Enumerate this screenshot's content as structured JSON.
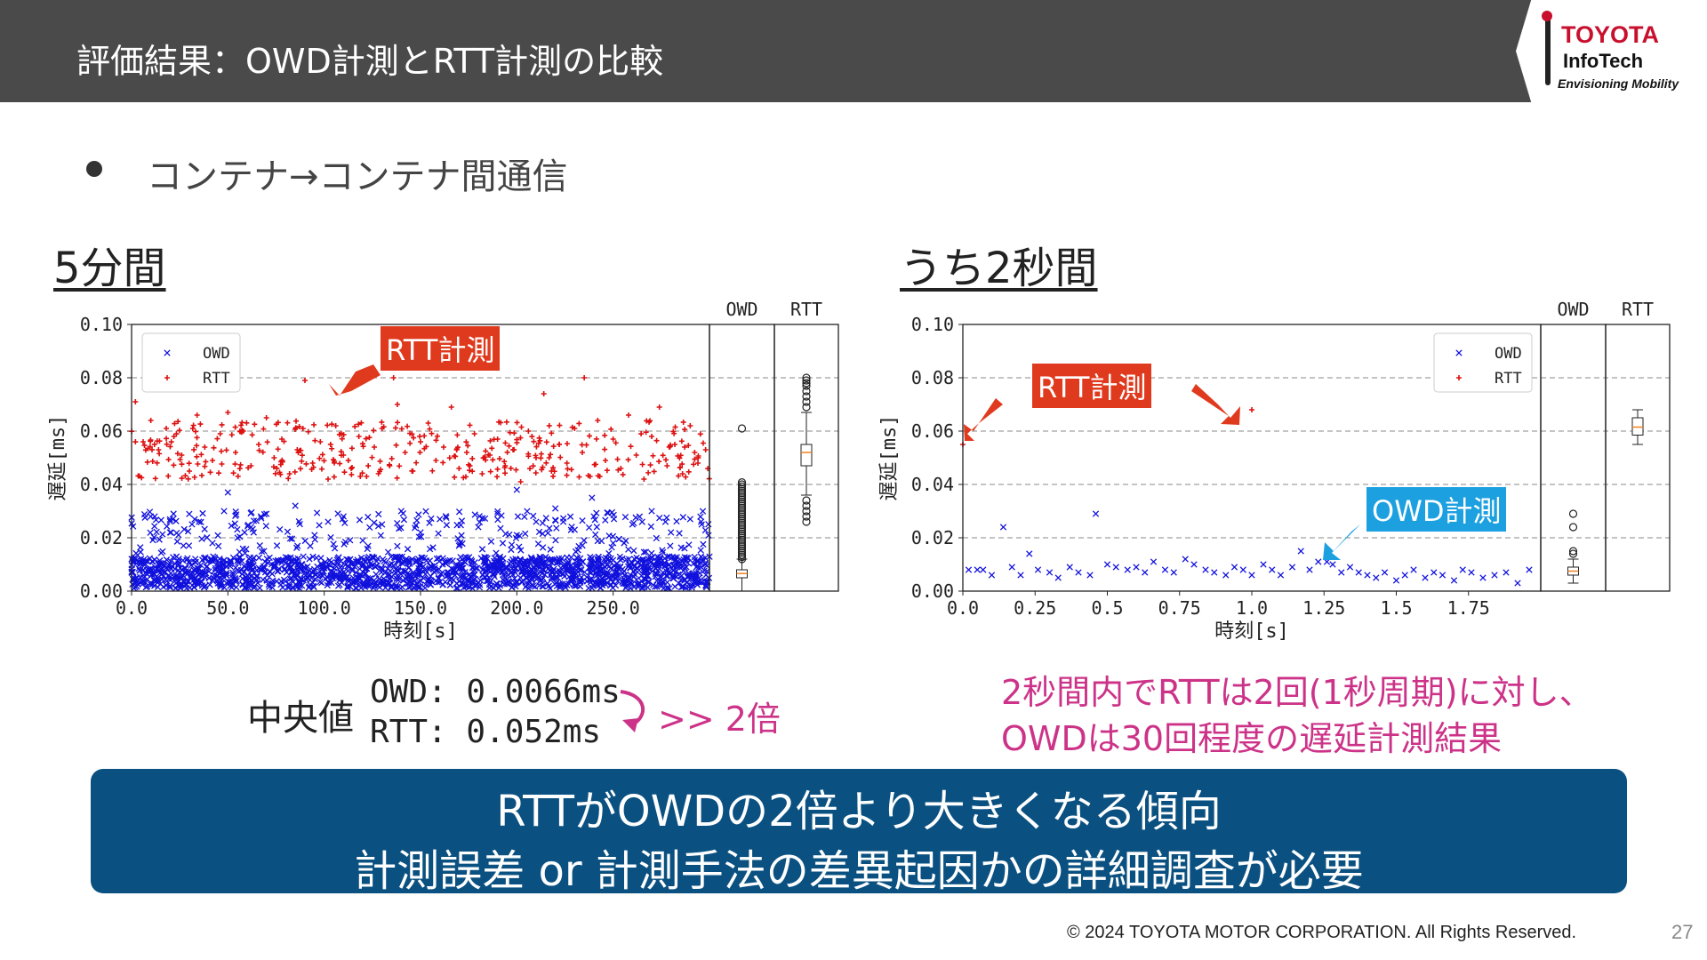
{
  "header": {
    "title": "評価結果：OWD計測とRTT計測の比較"
  },
  "logo": {
    "line1": "TOYOTA",
    "line2": "InfoTech",
    "line3": "Envisioning Mobility"
  },
  "bullet": "コンテナ→コンテナ間通信",
  "sections": {
    "left": "5分間",
    "right": "うち2秒間"
  },
  "colors": {
    "owd": "#1111dd",
    "rtt": "#dd1111",
    "accent_pink": "#cc3388",
    "banner": "#0a5080",
    "callout_red": "#e03a1e",
    "callout_blue": "#1ca0e0"
  },
  "callouts": {
    "rtt": "RTT計測",
    "owd": "OWD計測"
  },
  "chart_data": [
    {
      "type": "scatter",
      "ylabel": "遅延[ms]",
      "xlabel": "時刻[s]",
      "xlim": [
        0,
        300
      ],
      "ylim": [
        0,
        0.1
      ],
      "xticks": [
        "0.0",
        "50.0",
        "100.0",
        "150.0",
        "200.0",
        "250.0"
      ],
      "yticks": [
        "0.00",
        "0.02",
        "0.04",
        "0.06",
        "0.08",
        "0.10"
      ],
      "grid": "horizontal dashed",
      "legend": "top-left",
      "series": [
        {
          "name": "OWD",
          "marker": "x",
          "dense_band": [
            0.001,
            0.013
          ],
          "scattered": [
            [
              12,
              0.028
            ],
            [
              20,
              0.022
            ],
            [
              35,
              0.026
            ],
            [
              42,
              0.018
            ],
            [
              48,
              0.03
            ],
            [
              55,
              0.02
            ],
            [
              62,
              0.024
            ],
            [
              70,
              0.029
            ],
            [
              85,
              0.032
            ],
            [
              95,
              0.021
            ],
            [
              102,
              0.026
            ],
            [
              110,
              0.028
            ],
            [
              120,
              0.019
            ],
            [
              130,
              0.025
            ],
            [
              140,
              0.03
            ],
            [
              150,
              0.022
            ],
            [
              160,
              0.027
            ],
            [
              170,
              0.017
            ],
            [
              180,
              0.024
            ],
            [
              190,
              0.029
            ],
            [
              200,
              0.021
            ],
            [
              210,
              0.026
            ],
            [
              220,
              0.031
            ],
            [
              230,
              0.023
            ],
            [
              240,
              0.028
            ],
            [
              250,
              0.018
            ],
            [
              260,
              0.025
            ],
            [
              270,
              0.03
            ],
            [
              280,
              0.022
            ],
            [
              290,
              0.027
            ],
            [
              50,
              0.037
            ],
            [
              200,
              0.038
            ],
            [
              239,
              0.035
            ]
          ]
        },
        {
          "name": "RTT",
          "marker": "+",
          "values": [
            [
              2,
              0.071
            ],
            [
              6,
              0.056
            ],
            [
              10,
              0.064
            ],
            [
              14,
              0.053
            ],
            [
              18,
              0.061
            ],
            [
              22,
              0.058
            ],
            [
              26,
              0.051
            ],
            [
              30,
              0.045
            ],
            [
              34,
              0.066
            ],
            [
              38,
              0.054
            ],
            [
              42,
              0.049
            ],
            [
              46,
              0.059
            ],
            [
              50,
              0.067
            ],
            [
              54,
              0.052
            ],
            [
              58,
              0.06
            ],
            [
              62,
              0.047
            ],
            [
              66,
              0.055
            ],
            [
              70,
              0.065
            ],
            [
              74,
              0.05
            ],
            [
              78,
              0.057
            ],
            [
              82,
              0.044
            ],
            [
              86,
              0.053
            ],
            [
              90,
              0.079
            ],
            [
              94,
              0.048
            ],
            [
              98,
              0.056
            ],
            [
              102,
              0.042
            ],
            [
              106,
              0.062
            ],
            [
              110,
              0.051
            ],
            [
              114,
              0.046
            ],
            [
              118,
              0.058
            ],
            [
              122,
              0.043
            ],
            [
              126,
              0.054
            ],
            [
              130,
              0.061
            ],
            [
              134,
              0.047
            ],
            [
              138,
              0.07
            ],
            [
              142,
              0.052
            ],
            [
              146,
              0.045
            ],
            [
              150,
              0.056
            ],
            [
              154,
              0.063
            ],
            [
              158,
              0.049
            ],
            [
              162,
              0.054
            ],
            [
              166,
              0.069
            ],
            [
              170,
              0.046
            ],
            [
              174,
              0.052
            ],
            [
              178,
              0.059
            ],
            [
              182,
              0.044
            ],
            [
              186,
              0.051
            ],
            [
              190,
              0.057
            ],
            [
              194,
              0.047
            ],
            [
              198,
              0.053
            ],
            [
              202,
              0.041
            ],
            [
              206,
              0.06
            ],
            [
              210,
              0.05
            ],
            [
              214,
              0.074
            ],
            [
              218,
              0.045
            ],
            [
              222,
              0.055
            ],
            [
              226,
              0.048
            ],
            [
              230,
              0.061
            ],
            [
              234,
              0.052
            ],
            [
              238,
              0.043
            ],
            [
              242,
              0.064
            ],
            [
              246,
              0.049
            ],
            [
              250,
              0.057
            ],
            [
              254,
              0.046
            ],
            [
              258,
              0.066
            ],
            [
              262,
              0.051
            ],
            [
              266,
              0.042
            ],
            [
              270,
              0.058
            ],
            [
              274,
              0.069
            ],
            [
              278,
              0.047
            ],
            [
              282,
              0.055
            ],
            [
              286,
              0.044
            ],
            [
              290,
              0.062
            ],
            [
              294,
              0.048
            ],
            [
              298,
              0.053
            ],
            [
              136,
              0.08
            ],
            [
              235,
              0.08
            ]
          ]
        }
      ],
      "boxplot": {
        "labels": [
          "OWD",
          "RTT"
        ],
        "OWD": {
          "min": 0.0,
          "q1": 0.005,
          "median": 0.0066,
          "q3": 0.008,
          "max": 0.012,
          "outliers_range": [
            0.012,
            0.041
          ],
          "extra_outlier": 0.061
        },
        "RTT": {
          "min": 0.036,
          "q1": 0.047,
          "median": 0.052,
          "q3": 0.055,
          "max": 0.067,
          "outliers": [
            0.026,
            0.028,
            0.03,
            0.032,
            0.034,
            0.069,
            0.071,
            0.073,
            0.075,
            0.077,
            0.078,
            0.079,
            0.08
          ]
        }
      }
    },
    {
      "type": "scatter",
      "ylabel": "遅延[ms]",
      "xlabel": "時刻[s]",
      "xlim": [
        0,
        2
      ],
      "ylim": [
        0,
        0.1
      ],
      "xticks": [
        "0.0",
        "0.25",
        "0.5",
        "0.75",
        "1.0",
        "1.25",
        "1.5",
        "1.75"
      ],
      "yticks": [
        "0.00",
        "0.02",
        "0.04",
        "0.06",
        "0.08",
        "0.10"
      ],
      "grid": "horizontal dashed",
      "legend": "top-right",
      "series": [
        {
          "name": "OWD",
          "marker": "x",
          "values": [
            [
              0.02,
              0.008
            ],
            [
              0.05,
              0.008
            ],
            [
              0.07,
              0.008
            ],
            [
              0.1,
              0.006
            ],
            [
              0.14,
              0.024
            ],
            [
              0.17,
              0.009
            ],
            [
              0.2,
              0.006
            ],
            [
              0.23,
              0.014
            ],
            [
              0.26,
              0.008
            ],
            [
              0.3,
              0.007
            ],
            [
              0.33,
              0.005
            ],
            [
              0.37,
              0.009
            ],
            [
              0.4,
              0.007
            ],
            [
              0.44,
              0.006
            ],
            [
              0.46,
              0.029
            ],
            [
              0.5,
              0.01
            ],
            [
              0.53,
              0.009
            ],
            [
              0.57,
              0.008
            ],
            [
              0.6,
              0.009
            ],
            [
              0.63,
              0.007
            ],
            [
              0.66,
              0.011
            ],
            [
              0.7,
              0.008
            ],
            [
              0.73,
              0.007
            ],
            [
              0.77,
              0.012
            ],
            [
              0.8,
              0.01
            ],
            [
              0.84,
              0.008
            ],
            [
              0.87,
              0.007
            ],
            [
              0.91,
              0.006
            ],
            [
              0.94,
              0.009
            ],
            [
              0.97,
              0.008
            ],
            [
              1.0,
              0.006
            ],
            [
              1.04,
              0.01
            ],
            [
              1.07,
              0.008
            ],
            [
              1.1,
              0.006
            ],
            [
              1.14,
              0.009
            ],
            [
              1.17,
              0.015
            ],
            [
              1.2,
              0.008
            ],
            [
              1.23,
              0.011
            ],
            [
              1.26,
              0.011
            ],
            [
              1.28,
              0.01
            ],
            [
              1.31,
              0.007
            ],
            [
              1.34,
              0.009
            ],
            [
              1.37,
              0.007
            ],
            [
              1.4,
              0.006
            ],
            [
              1.43,
              0.005
            ],
            [
              1.46,
              0.007
            ],
            [
              1.5,
              0.004
            ],
            [
              1.53,
              0.006
            ],
            [
              1.56,
              0.008
            ],
            [
              1.6,
              0.005
            ],
            [
              1.63,
              0.007
            ],
            [
              1.66,
              0.006
            ],
            [
              1.7,
              0.004
            ],
            [
              1.73,
              0.008
            ],
            [
              1.76,
              0.007
            ],
            [
              1.8,
              0.005
            ],
            [
              1.84,
              0.006
            ],
            [
              1.88,
              0.007
            ],
            [
              1.92,
              0.003
            ],
            [
              1.96,
              0.008
            ]
          ]
        },
        {
          "name": "RTT",
          "marker": "+",
          "values": [
            [
              0.0,
              0.055
            ],
            [
              1.0,
              0.068
            ]
          ]
        }
      ],
      "boxplot": {
        "labels": [
          "OWD",
          "RTT"
        ],
        "OWD": {
          "min": 0.003,
          "q1": 0.006,
          "median": 0.0075,
          "q3": 0.009,
          "max": 0.012,
          "outliers": [
            0.014,
            0.015,
            0.024,
            0.029
          ]
        },
        "RTT": {
          "min": 0.055,
          "q1": 0.0585,
          "median": 0.0615,
          "q3": 0.065,
          "max": 0.068,
          "outliers": []
        }
      }
    }
  ],
  "median": {
    "label": "中央値",
    "owd": "OWD: 0.0066ms",
    "rtt": "RTT: 0.052ms",
    "ratio": ">> 2倍"
  },
  "note": {
    "line1": "2秒間内でRTTは2回(1秒周期)に対し、",
    "line2": "OWDは30回程度の遅延計測結果"
  },
  "conclusion": {
    "line1": "RTTがOWDの2倍より大きくなる傾向",
    "line2": "計測誤差 or 計測手法の差異起因かの詳細調査が必要"
  },
  "footer": {
    "copyright": "© 2024 TOYOTA MOTOR CORPORATION. All Rights Reserved.",
    "page": "27"
  }
}
